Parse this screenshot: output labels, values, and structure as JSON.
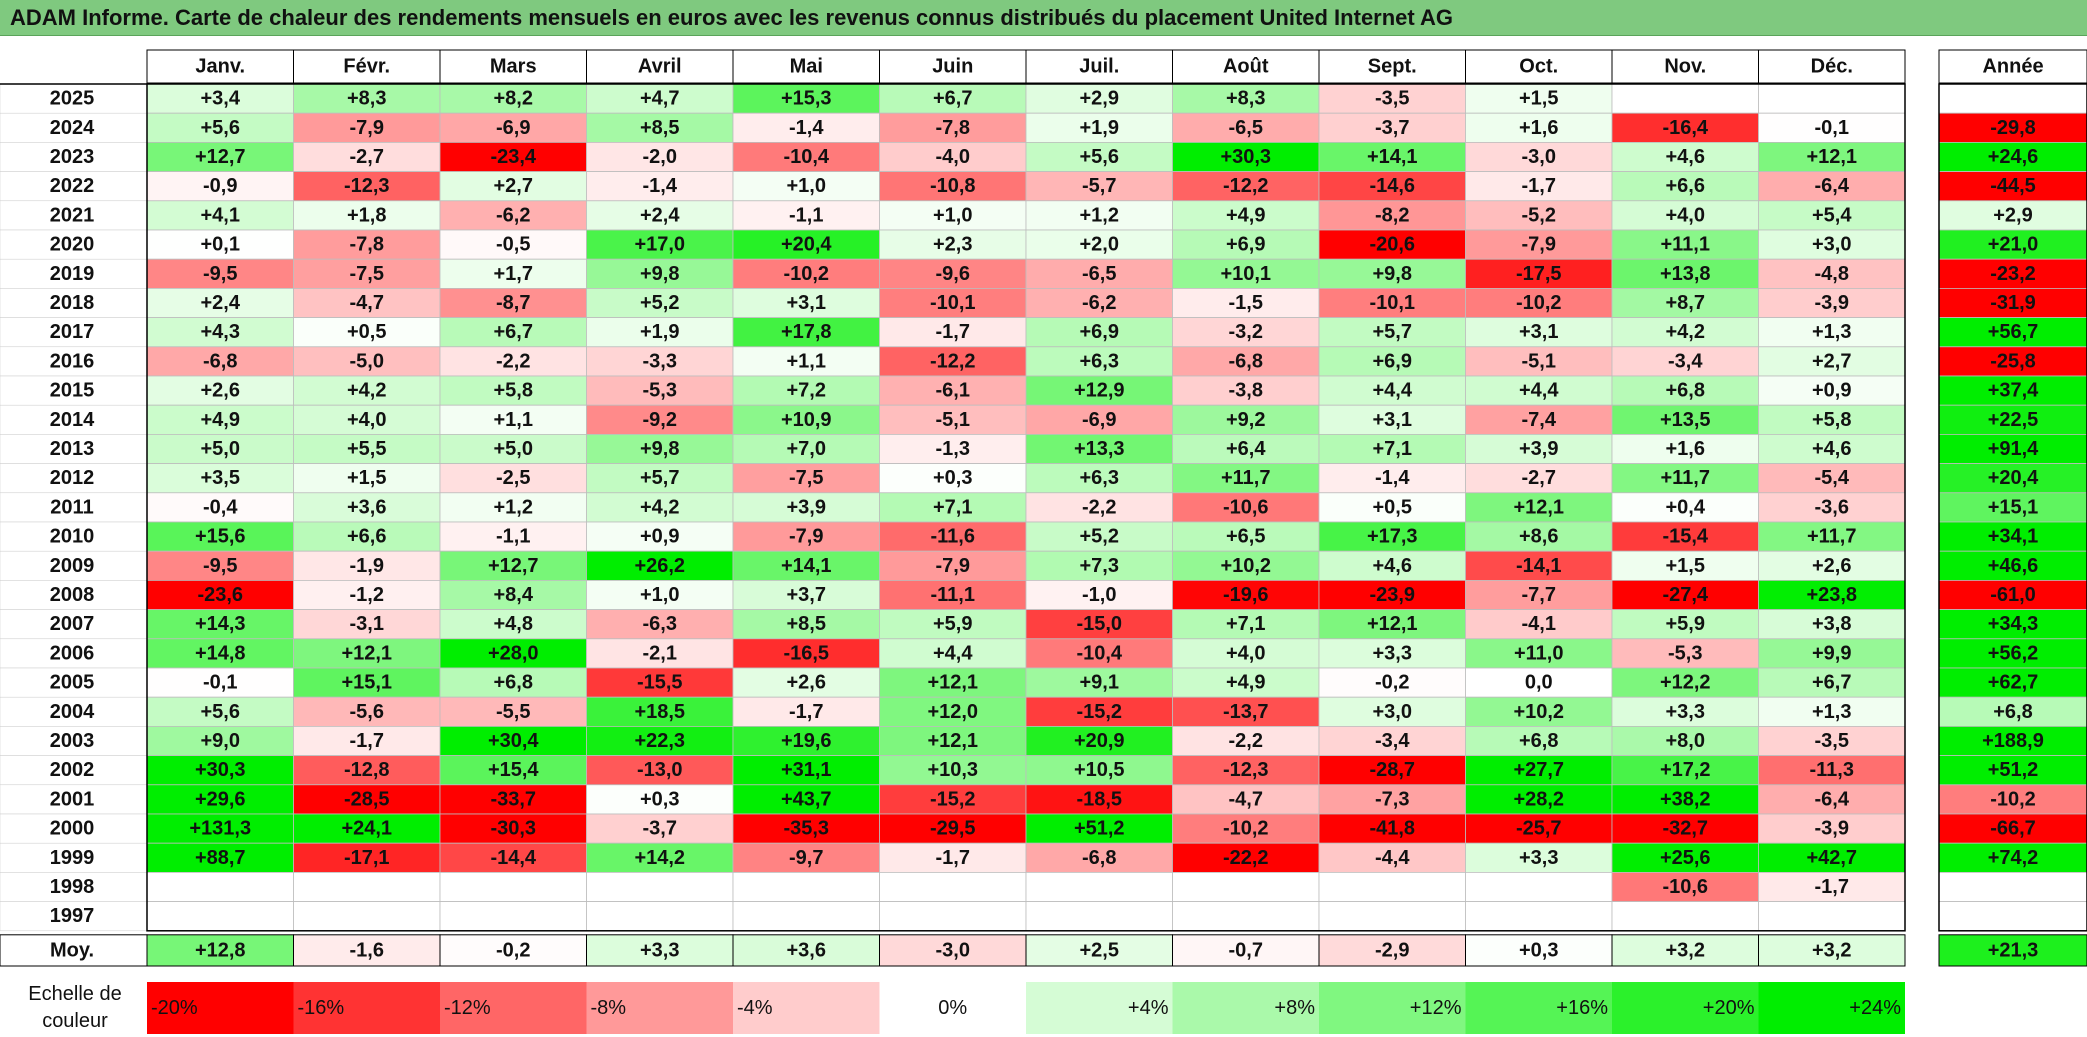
{
  "title": "ADAM Informe. Carte de chaleur des rendements mensuels en euros avec les revenus connus distribués du placement United Internet AG",
  "colors": {
    "title_bg": "#7fc97f",
    "positive_max": "#00ee00",
    "negative_max": "#ff0000",
    "neutral": "#ffffff"
  },
  "chart_data": {
    "type": "heatmap",
    "title": "ADAM Informe. Carte de chaleur des rendements mensuels en euros avec les revenus connus distribués du placement United Internet AG",
    "months": [
      "Janv.",
      "Févr.",
      "Mars",
      "Avril",
      "Mai",
      "Juin",
      "Juil.",
      "Août",
      "Sept.",
      "Oct.",
      "Nov.",
      "Déc."
    ],
    "year_label": "Année",
    "avg_label": "Moy.",
    "rows": [
      {
        "year": "2025",
        "values": [
          "+3,4",
          "+8,3",
          "+8,2",
          "+4,7",
          "+15,3",
          "+6,7",
          "+2,9",
          "+8,3",
          "-3,5",
          "+1,5",
          "",
          ""
        ],
        "total": ""
      },
      {
        "year": "2024",
        "values": [
          "+5,6",
          "-7,9",
          "-6,9",
          "+8,5",
          "-1,4",
          "-7,8",
          "+1,9",
          "-6,5",
          "-3,7",
          "+1,6",
          "-16,4",
          "-0,1"
        ],
        "total": "-29,8"
      },
      {
        "year": "2023",
        "values": [
          "+12,7",
          "-2,7",
          "-23,4",
          "-2,0",
          "-10,4",
          "-4,0",
          "+5,6",
          "+30,3",
          "+14,1",
          "-3,0",
          "+4,6",
          "+12,1"
        ],
        "total": "+24,6"
      },
      {
        "year": "2022",
        "values": [
          "-0,9",
          "-12,3",
          "+2,7",
          "-1,4",
          "+1,0",
          "-10,8",
          "-5,7",
          "-12,2",
          "-14,6",
          "-1,7",
          "+6,6",
          "-6,4"
        ],
        "total": "-44,5"
      },
      {
        "year": "2021",
        "values": [
          "+4,1",
          "+1,8",
          "-6,2",
          "+2,4",
          "-1,1",
          "+1,0",
          "+1,2",
          "+4,9",
          "-8,2",
          "-5,2",
          "+4,0",
          "+5,4"
        ],
        "total": "+2,9"
      },
      {
        "year": "2020",
        "values": [
          "+0,1",
          "-7,8",
          "-0,5",
          "+17,0",
          "+20,4",
          "+2,3",
          "+2,0",
          "+6,9",
          "-20,6",
          "-7,9",
          "+11,1",
          "+3,0"
        ],
        "total": "+21,0"
      },
      {
        "year": "2019",
        "values": [
          "-9,5",
          "-7,5",
          "+1,7",
          "+9,8",
          "-10,2",
          "-9,6",
          "-6,5",
          "+10,1",
          "+9,8",
          "-17,5",
          "+13,8",
          "-4,8"
        ],
        "total": "-23,2"
      },
      {
        "year": "2018",
        "values": [
          "+2,4",
          "-4,7",
          "-8,7",
          "+5,2",
          "+3,1",
          "-10,1",
          "-6,2",
          "-1,5",
          "-10,1",
          "-10,2",
          "+8,7",
          "-3,9"
        ],
        "total": "-31,9"
      },
      {
        "year": "2017",
        "values": [
          "+4,3",
          "+0,5",
          "+6,7",
          "+1,9",
          "+17,8",
          "-1,7",
          "+6,9",
          "-3,2",
          "+5,7",
          "+3,1",
          "+4,2",
          "+1,3"
        ],
        "total": "+56,7"
      },
      {
        "year": "2016",
        "values": [
          "-6,8",
          "-5,0",
          "-2,2",
          "-3,3",
          "+1,1",
          "-12,2",
          "+6,3",
          "-6,8",
          "+6,9",
          "-5,1",
          "-3,4",
          "+2,7"
        ],
        "total": "-25,8"
      },
      {
        "year": "2015",
        "values": [
          "+2,6",
          "+4,2",
          "+5,8",
          "-5,3",
          "+7,2",
          "-6,1",
          "+12,9",
          "-3,8",
          "+4,4",
          "+4,4",
          "+6,8",
          "+0,9"
        ],
        "total": "+37,4"
      },
      {
        "year": "2014",
        "values": [
          "+4,9",
          "+4,0",
          "+1,1",
          "-9,2",
          "+10,9",
          "-5,1",
          "-6,9",
          "+9,2",
          "+3,1",
          "-7,4",
          "+13,5",
          "+5,8"
        ],
        "total": "+22,5"
      },
      {
        "year": "2013",
        "values": [
          "+5,0",
          "+5,5",
          "+5,0",
          "+9,8",
          "+7,0",
          "-1,3",
          "+13,3",
          "+6,4",
          "+7,1",
          "+3,9",
          "+1,6",
          "+4,6"
        ],
        "total": "+91,4"
      },
      {
        "year": "2012",
        "values": [
          "+3,5",
          "+1,5",
          "-2,5",
          "+5,7",
          "-7,5",
          "+0,3",
          "+6,3",
          "+11,7",
          "-1,4",
          "-2,7",
          "+11,7",
          "-5,4"
        ],
        "total": "+20,4"
      },
      {
        "year": "2011",
        "values": [
          "-0,4",
          "+3,6",
          "+1,2",
          "+4,2",
          "+3,9",
          "+7,1",
          "-2,2",
          "-10,6",
          "+0,5",
          "+12,1",
          "+0,4",
          "-3,6"
        ],
        "total": "+15,1"
      },
      {
        "year": "2010",
        "values": [
          "+15,6",
          "+6,6",
          "-1,1",
          "+0,9",
          "-7,9",
          "-11,6",
          "+5,2",
          "+6,5",
          "+17,3",
          "+8,6",
          "-15,4",
          "+11,7"
        ],
        "total": "+34,1"
      },
      {
        "year": "2009",
        "values": [
          "-9,5",
          "-1,9",
          "+12,7",
          "+26,2",
          "+14,1",
          "-7,9",
          "+7,3",
          "+10,2",
          "+4,6",
          "-14,1",
          "+1,5",
          "+2,6"
        ],
        "total": "+46,6"
      },
      {
        "year": "2008",
        "values": [
          "-23,6",
          "-1,2",
          "+8,4",
          "+1,0",
          "+3,7",
          "-11,1",
          "-1,0",
          "-19,6",
          "-23,9",
          "-7,7",
          "-27,4",
          "+23,8"
        ],
        "total": "-61,0"
      },
      {
        "year": "2007",
        "values": [
          "+14,3",
          "-3,1",
          "+4,8",
          "-6,3",
          "+8,5",
          "+5,9",
          "-15,0",
          "+7,1",
          "+12,1",
          "-4,1",
          "+5,9",
          "+3,8"
        ],
        "total": "+34,3"
      },
      {
        "year": "2006",
        "values": [
          "+14,8",
          "+12,1",
          "+28,0",
          "-2,1",
          "-16,5",
          "+4,4",
          "-10,4",
          "+4,0",
          "+3,3",
          "+11,0",
          "-5,3",
          "+9,9"
        ],
        "total": "+56,2"
      },
      {
        "year": "2005",
        "values": [
          "-0,1",
          "+15,1",
          "+6,8",
          "-15,5",
          "+2,6",
          "+12,1",
          "+9,1",
          "+4,9",
          "-0,2",
          "0,0",
          "+12,2",
          "+6,7"
        ],
        "total": "+62,7"
      },
      {
        "year": "2004",
        "values": [
          "+5,6",
          "-5,6",
          "-5,5",
          "+18,5",
          "-1,7",
          "+12,0",
          "-15,2",
          "-13,7",
          "+3,0",
          "+10,2",
          "+3,3",
          "+1,3"
        ],
        "total": "+6,8"
      },
      {
        "year": "2003",
        "values": [
          "+9,0",
          "-1,7",
          "+30,4",
          "+22,3",
          "+19,6",
          "+12,1",
          "+20,9",
          "-2,2",
          "-3,4",
          "+6,8",
          "+8,0",
          "-3,5"
        ],
        "total": "+188,9"
      },
      {
        "year": "2002",
        "values": [
          "+30,3",
          "-12,8",
          "+15,4",
          "-13,0",
          "+31,1",
          "+10,3",
          "+10,5",
          "-12,3",
          "-28,7",
          "+27,7",
          "+17,2",
          "-11,3"
        ],
        "total": "+51,2"
      },
      {
        "year": "2001",
        "values": [
          "+29,6",
          "-28,5",
          "-33,7",
          "+0,3",
          "+43,7",
          "-15,2",
          "-18,5",
          "-4,7",
          "-7,3",
          "+28,2",
          "+38,2",
          "-6,4"
        ],
        "total": "-10,2"
      },
      {
        "year": "2000",
        "values": [
          "+131,3",
          "+24,1",
          "-30,3",
          "-3,7",
          "-35,3",
          "-29,5",
          "+51,2",
          "-10,2",
          "-41,8",
          "-25,7",
          "-32,7",
          "-3,9"
        ],
        "total": "-66,7"
      },
      {
        "year": "1999",
        "values": [
          "+88,7",
          "-17,1",
          "-14,4",
          "+14,2",
          "-9,7",
          "-1,7",
          "-6,8",
          "-22,2",
          "-4,4",
          "+3,3",
          "+25,6",
          "+42,7"
        ],
        "total": "+74,2"
      },
      {
        "year": "1998",
        "values": [
          "",
          "",
          "",
          "",
          "",
          "",
          "",
          "",
          "",
          "",
          "-10,6",
          "-1,7"
        ],
        "total": ""
      },
      {
        "year": "1997",
        "values": [
          "",
          "",
          "",
          "",
          "",
          "",
          "",
          "",
          "",
          "",
          "",
          ""
        ],
        "total": ""
      }
    ],
    "averages": [
      "+12,8",
      "-1,6",
      "-0,2",
      "+3,3",
      "+3,6",
      "-3,0",
      "+2,5",
      "-0,7",
      "-2,9",
      "+0,3",
      "+3,2",
      "+3,2"
    ],
    "average_total": "+21,3",
    "scale_label_line1": "Echelle de",
    "scale_label_line2": "couleur",
    "scale": [
      {
        "label": "-20%",
        "value": -20
      },
      {
        "label": "-16%",
        "value": -16
      },
      {
        "label": "-12%",
        "value": -12
      },
      {
        "label": "-8%",
        "value": -8
      },
      {
        "label": "-4%",
        "value": -4
      },
      {
        "label": "0%",
        "value": 0
      },
      {
        "label": "+4%",
        "value": 4
      },
      {
        "label": "+8%",
        "value": 8
      },
      {
        "label": "+12%",
        "value": 12
      },
      {
        "label": "+16%",
        "value": 16
      },
      {
        "label": "+20%",
        "value": 20
      },
      {
        "label": "+24%",
        "value": 24
      }
    ]
  }
}
